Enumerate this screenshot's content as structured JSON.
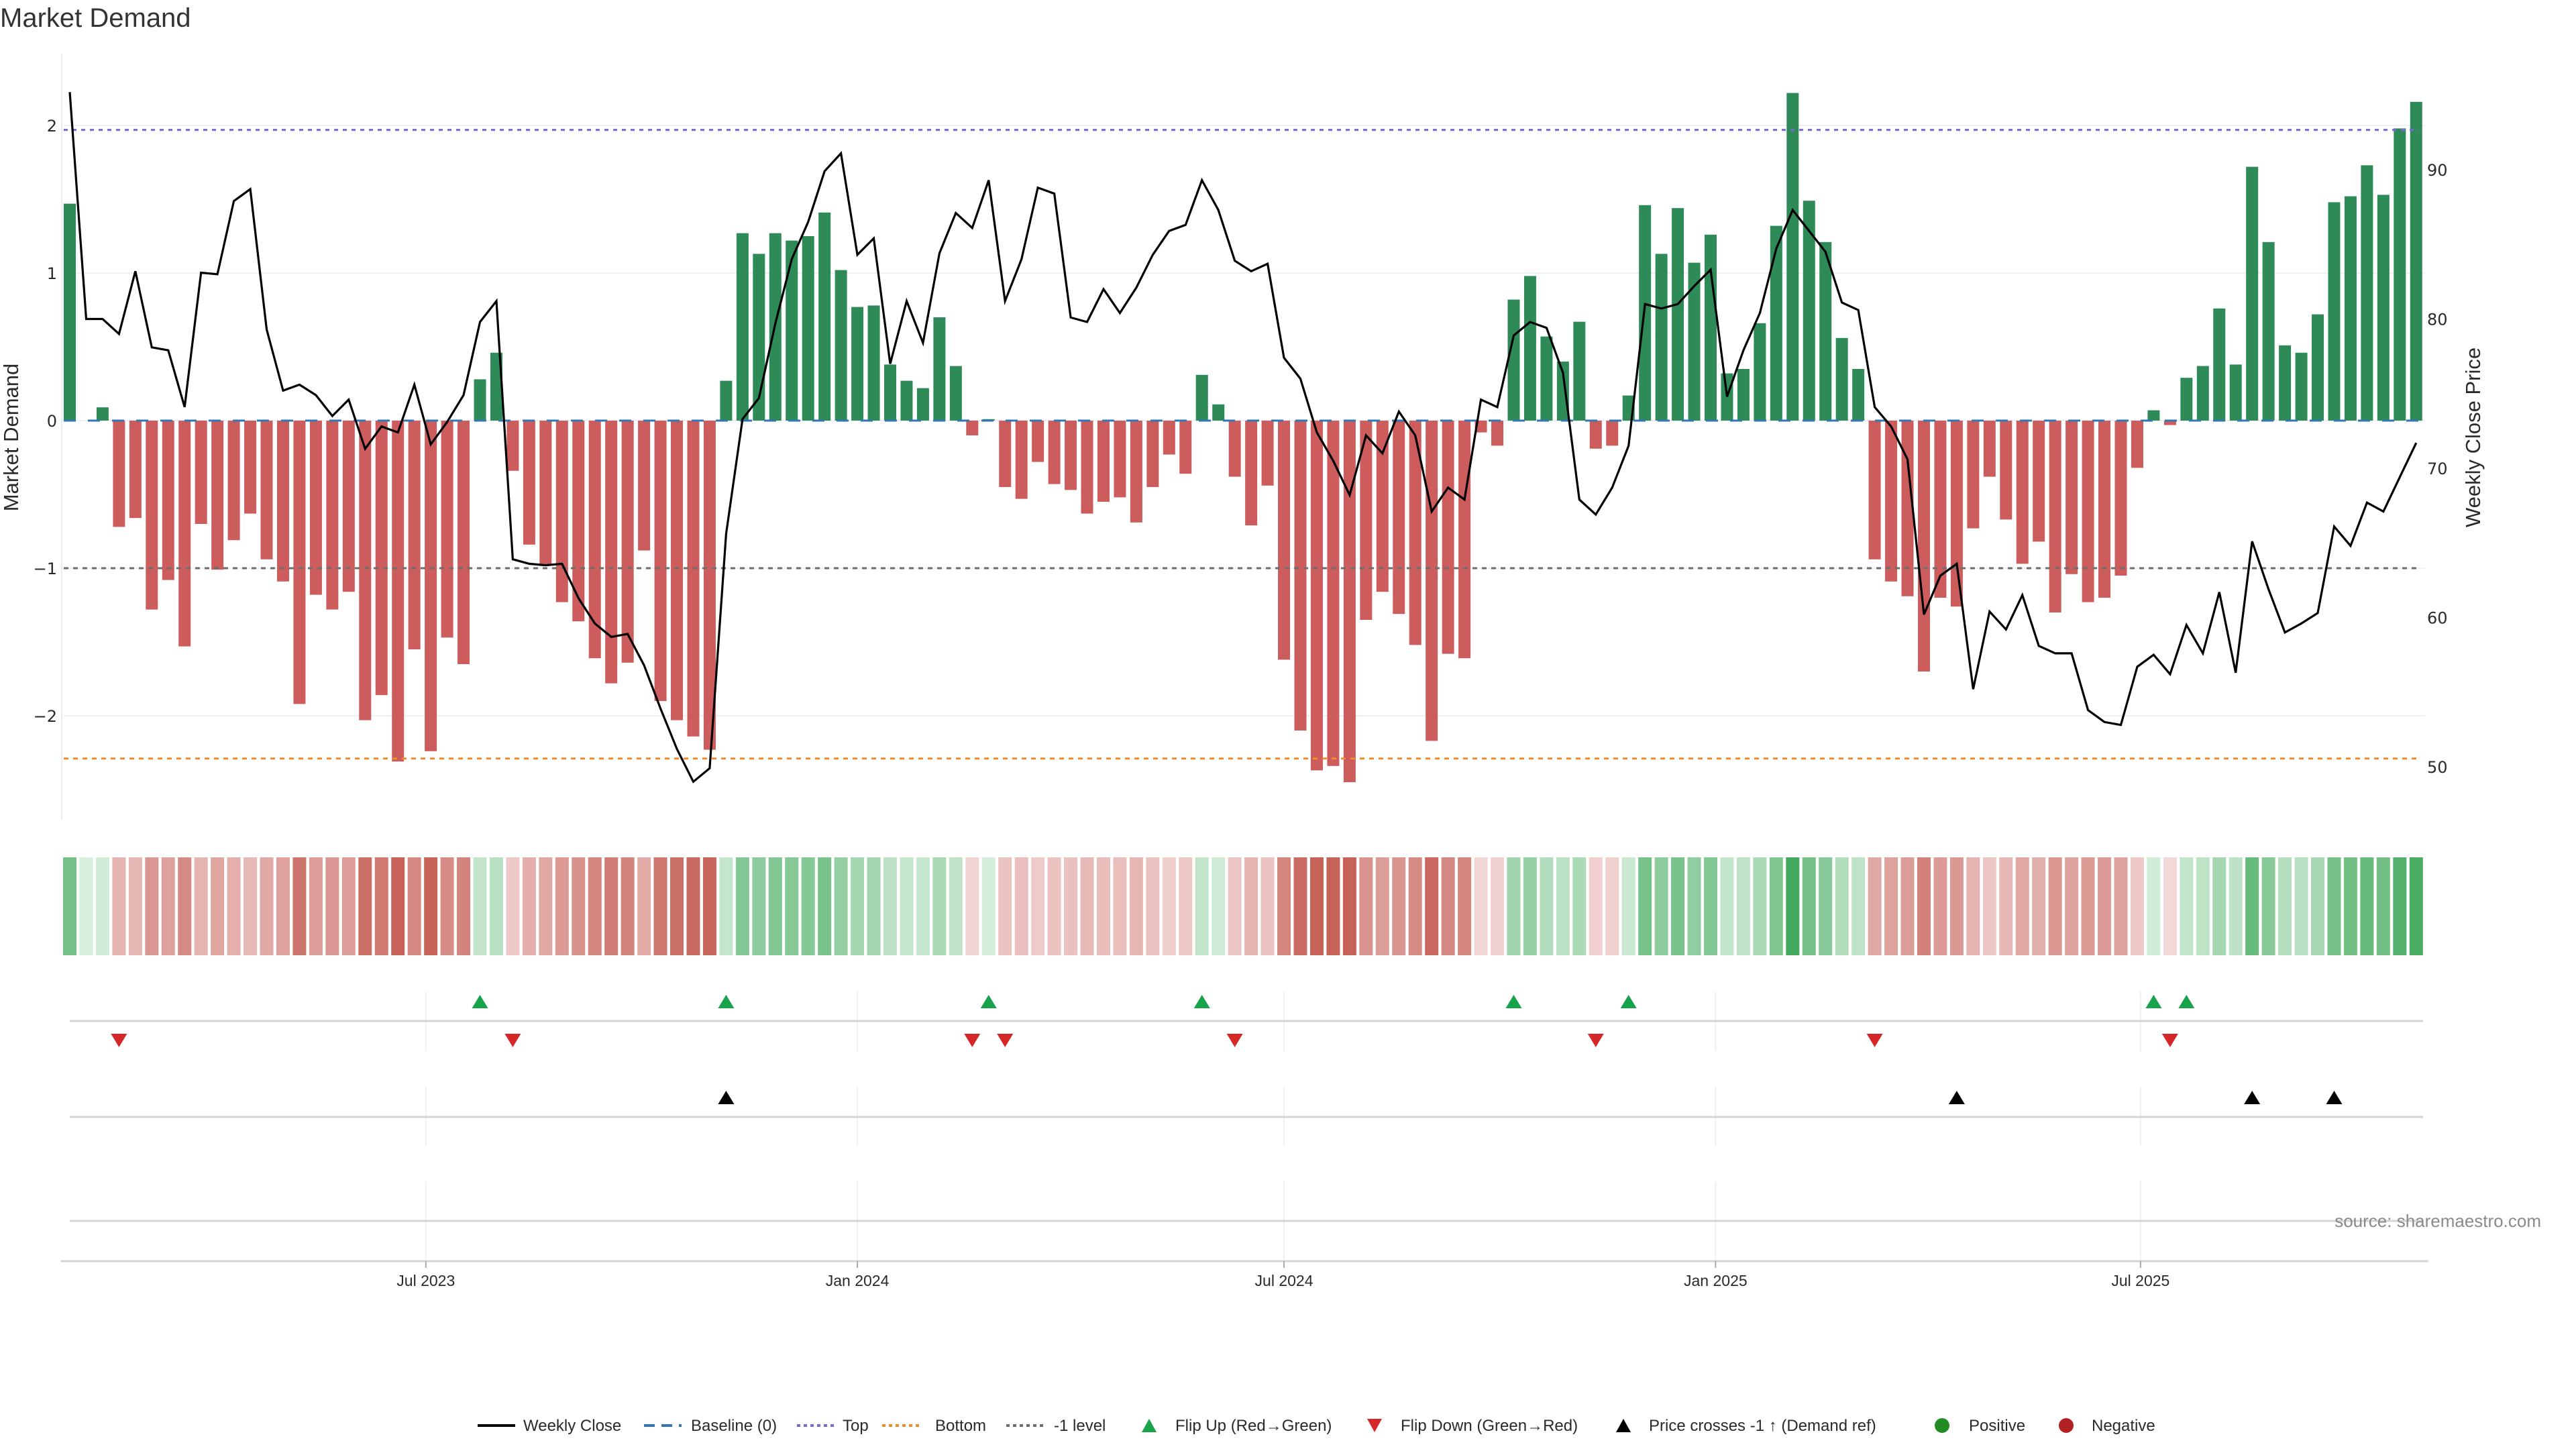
{
  "chart_data": {
    "type": "bar",
    "title": "Market Demand",
    "ylabel": "Market Demand",
    "y2label": "Weekly Close Price",
    "xlabel": "",
    "x_unit": "week index",
    "ylim": [
      -2.7,
      2.49
    ],
    "y2lim": [
      46.4,
      97.8
    ],
    "yticks": [
      {
        "value": 2,
        "label": "2"
      },
      {
        "value": 1,
        "label": "1"
      },
      {
        "value": 0,
        "label": "0"
      },
      {
        "value": -1,
        "label": "−1"
      },
      {
        "value": -2,
        "label": "−2"
      }
    ],
    "y2ticks": [
      {
        "value": 90,
        "label": "90"
      },
      {
        "value": 80,
        "label": "80"
      },
      {
        "value": 70,
        "label": "70"
      },
      {
        "value": 60,
        "label": "60"
      },
      {
        "value": 50,
        "label": "50"
      }
    ],
    "xticks": [
      {
        "week": 22.7,
        "label": "Jul 2023"
      },
      {
        "week": 49.0,
        "label": "Jan 2024"
      },
      {
        "week": 75.0,
        "label": "Jul 2024"
      },
      {
        "week": 101.3,
        "label": "Jan 2025"
      },
      {
        "week": 127.2,
        "label": "Jul 2025"
      }
    ],
    "levels": {
      "top": 1.97,
      "bottom": -2.29,
      "minus_one": -1,
      "baseline": 0
    },
    "grid": true,
    "legend_position": "bottom",
    "series": [
      {
        "name": "Market Demand",
        "type": "bar",
        "axis": "left",
        "values": [
          1.47,
          0,
          0.09,
          -0.72,
          -0.66,
          -1.28,
          -1.08,
          -1.53,
          -0.7,
          -1.01,
          -0.81,
          -0.63,
          -0.94,
          -1.09,
          -1.92,
          -1.18,
          -1.28,
          -1.16,
          -2.03,
          -1.86,
          -2.31,
          -1.55,
          -2.24,
          -1.47,
          -1.65,
          0.28,
          0.46,
          -0.34,
          -0.84,
          -0.98,
          -1.23,
          -1.36,
          -1.61,
          -1.78,
          -1.64,
          -0.88,
          -1.9,
          -2.03,
          -2.14,
          -2.23,
          0.27,
          1.27,
          1.13,
          1.27,
          1.22,
          1.25,
          1.41,
          1.02,
          0.77,
          0.78,
          0.38,
          0.27,
          0.22,
          0.7,
          0.37,
          -0.1,
          0.01,
          -0.45,
          -0.53,
          -0.28,
          -0.43,
          -0.47,
          -0.63,
          -0.55,
          -0.52,
          -0.69,
          -0.45,
          -0.23,
          -0.36,
          0.31,
          0.11,
          -0.38,
          -0.71,
          -0.44,
          -1.62,
          -2.1,
          -2.37,
          -2.34,
          -2.45,
          -1.35,
          -1.16,
          -1.31,
          -1.52,
          -2.17,
          -1.58,
          -1.61,
          -0.08,
          -0.17,
          0.82,
          0.98,
          0.57,
          0.4,
          0.67,
          -0.19,
          -0.17,
          0.17,
          1.46,
          1.13,
          1.44,
          1.07,
          1.26,
          0.32,
          0.35,
          0.66,
          1.32,
          2.22,
          1.49,
          1.21,
          0.56,
          0.35,
          -0.94,
          -1.09,
          -1.19,
          -1.7,
          -1.2,
          -1.26,
          -0.73,
          -0.38,
          -0.67,
          -0.97,
          -0.82,
          -1.3,
          -1.04,
          -1.23,
          -1.2,
          -1.05,
          -0.32,
          0.07,
          -0.03,
          0.29,
          0.37,
          0.76,
          0.38,
          1.72,
          1.21,
          0.51,
          0.46,
          0.72,
          1.48,
          1.52,
          1.73,
          1.53,
          1.98,
          2.16
        ]
      },
      {
        "name": "Weekly Close",
        "type": "line",
        "axis": "right",
        "values": [
          95.2,
          80.0,
          80.0,
          79.0,
          83.2,
          78.1,
          77.9,
          74.1,
          83.1,
          83.0,
          87.9,
          88.7,
          79.3,
          75.2,
          75.6,
          74.9,
          73.5,
          74.6,
          71.3,
          72.8,
          72.4,
          75.6,
          71.6,
          73.1,
          74.9,
          79.8,
          81.2,
          63.9,
          63.6,
          63.5,
          63.6,
          61.3,
          59.6,
          58.7,
          58.9,
          56.8,
          53.9,
          51.2,
          49.0,
          49.9,
          65.6,
          73.3,
          74.7,
          79.7,
          84.0,
          86.5,
          89.9,
          91.1,
          84.3,
          85.4,
          77.0,
          81.2,
          78.4,
          84.4,
          87.1,
          86.1,
          89.3,
          81.2,
          84.0,
          88.8,
          88.4,
          80.1,
          79.8,
          82.0,
          80.4,
          82.1,
          84.3,
          85.9,
          86.3,
          89.3,
          87.3,
          83.9,
          83.2,
          83.7,
          77.4,
          76.0,
          72.4,
          70.5,
          68.2,
          72.2,
          71.0,
          73.8,
          72.2,
          67.1,
          68.7,
          67.9,
          74.6,
          74.1,
          78.9,
          79.8,
          79.4,
          76.4,
          67.9,
          66.9,
          68.7,
          71.5,
          81.0,
          80.7,
          81.0,
          82.2,
          83.3,
          74.8,
          77.9,
          80.4,
          84.7,
          87.3,
          85.9,
          84.5,
          81.1,
          80.6,
          74.1,
          72.8,
          70.6,
          60.2,
          62.8,
          63.6,
          55.2,
          60.4,
          59.2,
          61.5,
          58.1,
          57.6,
          57.6,
          53.8,
          53.0,
          52.8,
          56.7,
          57.5,
          56.2,
          59.5,
          57.6,
          61.7,
          56.3,
          65.1,
          61.9,
          59.0,
          59.6,
          60.3,
          66.1,
          64.8,
          67.7,
          67.1,
          69.4,
          71.7
        ]
      }
    ],
    "events": {
      "flip_up_weeks": [
        26,
        41,
        57,
        70,
        89,
        96,
        128,
        130
      ],
      "flip_down_weeks": [
        4,
        28,
        56,
        58,
        72,
        94,
        111,
        129
      ],
      "price_cross_weeks": [
        41,
        116,
        134,
        139
      ]
    },
    "legend": [
      {
        "key": "close",
        "label": "Weekly Close"
      },
      {
        "key": "baseline",
        "label": "Baseline (0)"
      },
      {
        "key": "top",
        "label": "Top"
      },
      {
        "key": "bottom",
        "label": "Bottom"
      },
      {
        "key": "minus1",
        "label": "-1 level"
      },
      {
        "key": "flipup",
        "label": "Flip Up (Red→Green)"
      },
      {
        "key": "flipdown",
        "label": "Flip Down (Green→Red)"
      },
      {
        "key": "cross",
        "label": "Price crosses -1 ↑ (Demand ref)"
      },
      {
        "key": "positive",
        "label": "Positive"
      },
      {
        "key": "negative",
        "label": "Negative"
      }
    ],
    "colors": {
      "positive_bar": "#2e8b57",
      "negative_bar": "#cd5c5c",
      "close_line": "#000000",
      "baseline": "#2f78b5",
      "top": "#7b68d6",
      "bottom": "#f08c2a",
      "minus1": "#6e6e6e",
      "flip_up": "#16a34a",
      "flip_down": "#d62728",
      "cross": "#000000",
      "positive_dot": "#228b22",
      "negative_dot": "#b22222"
    }
  },
  "source": "source: sharemaestro.com"
}
